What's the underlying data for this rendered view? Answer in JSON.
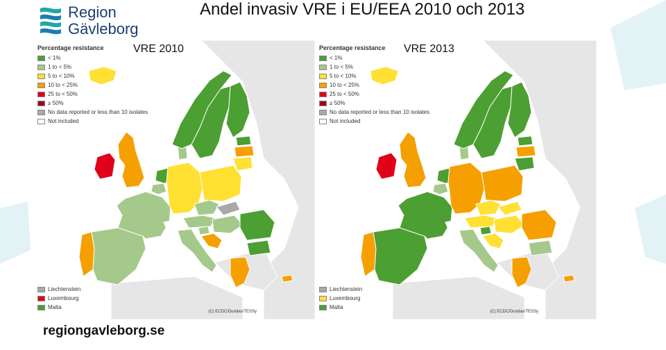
{
  "header": {
    "logo_line1": "Region",
    "logo_line2": "Gävleborg",
    "title": "Andel invasiv VRE i EU/EEA 2010 och 2013"
  },
  "legend": {
    "heading": "Percentage resistance",
    "items": [
      {
        "label": "< 1%",
        "color": "#4c9f32"
      },
      {
        "label": "1 to < 5%",
        "color": "#a5c98a"
      },
      {
        "label": "5 to < 10%",
        "color": "#ffe033"
      },
      {
        "label": "10 to < 25%",
        "color": "#f5a000"
      },
      {
        "label": "25 to < 50%",
        "color": "#e0001a"
      },
      {
        "label": "≥ 50%",
        "color": "#a0001a"
      },
      {
        "label": "No data reported or less than 10 isolates",
        "color": "#a8a8a8"
      },
      {
        "label": "Not included",
        "color": "#ffffff"
      }
    ]
  },
  "panels": [
    {
      "title": "VRE 2010",
      "small_countries": [
        {
          "label": "Liechtenstein",
          "color": "#a8a8a8"
        },
        {
          "label": "Luxembourg",
          "color": "#e0001a"
        },
        {
          "label": "Malta",
          "color": "#4c9f32"
        }
      ],
      "credit": "(C) ECDC/Dundas/TESSy",
      "country_colors": {
        "iceland": "#ffe033",
        "ireland": "#e0001a",
        "uk": "#f5a000",
        "portugal": "#f5a000",
        "spain": "#a5c98a",
        "france": "#a5c98a",
        "belgium": "#a5c98a",
        "netherlands": "#4c9f32",
        "germany": "#ffe033",
        "denmark": "#a5c98a",
        "norway": "#4c9f32",
        "sweden": "#4c9f32",
        "finland": "#4c9f32",
        "estonia": "#4c9f32",
        "latvia": "#f5a000",
        "lithuania": "#ffe033",
        "poland": "#ffe033",
        "czechia": "#a5c98a",
        "slovakia": "#a8a8a8",
        "austria": "#a5c98a",
        "switzerland": "#ffffff",
        "italy": "#a5c98a",
        "slovenia": "#a5c98a",
        "hungary": "#a5c98a",
        "croatia": "#f5a000",
        "romania": "#4c9f32",
        "bulgaria": "#4c9f32",
        "greece": "#f5a000",
        "cyprus": "#f5a000"
      }
    },
    {
      "title": "VRE 2013",
      "small_countries": [
        {
          "label": "Liechtenstein",
          "color": "#a8a8a8"
        },
        {
          "label": "Luxembourg",
          "color": "#ffe033"
        },
        {
          "label": "Malta",
          "color": "#4c9f32"
        }
      ],
      "credit": "(C) ECDC/Dundas/TESSy",
      "country_colors": {
        "iceland": "#ffe033",
        "ireland": "#e0001a",
        "uk": "#f5a000",
        "portugal": "#f5a000",
        "spain": "#4c9f32",
        "france": "#4c9f32",
        "belgium": "#a5c98a",
        "netherlands": "#4c9f32",
        "germany": "#f5a000",
        "denmark": "#a5c98a",
        "norway": "#4c9f32",
        "sweden": "#4c9f32",
        "finland": "#4c9f32",
        "estonia": "#4c9f32",
        "latvia": "#f5a000",
        "lithuania": "#4c9f32",
        "poland": "#f5a000",
        "czechia": "#ffe033",
        "slovakia": "#ffe033",
        "austria": "#ffe033",
        "switzerland": "#ffffff",
        "italy": "#a5c98a",
        "slovenia": "#4c9f32",
        "hungary": "#ffe033",
        "croatia": "#ffe033",
        "romania": "#f5a000",
        "bulgaria": "#a5c98a",
        "greece": "#f5a000",
        "cyprus": "#f5a000"
      }
    }
  ],
  "footer": {
    "url": "regiongavleborg.se"
  }
}
